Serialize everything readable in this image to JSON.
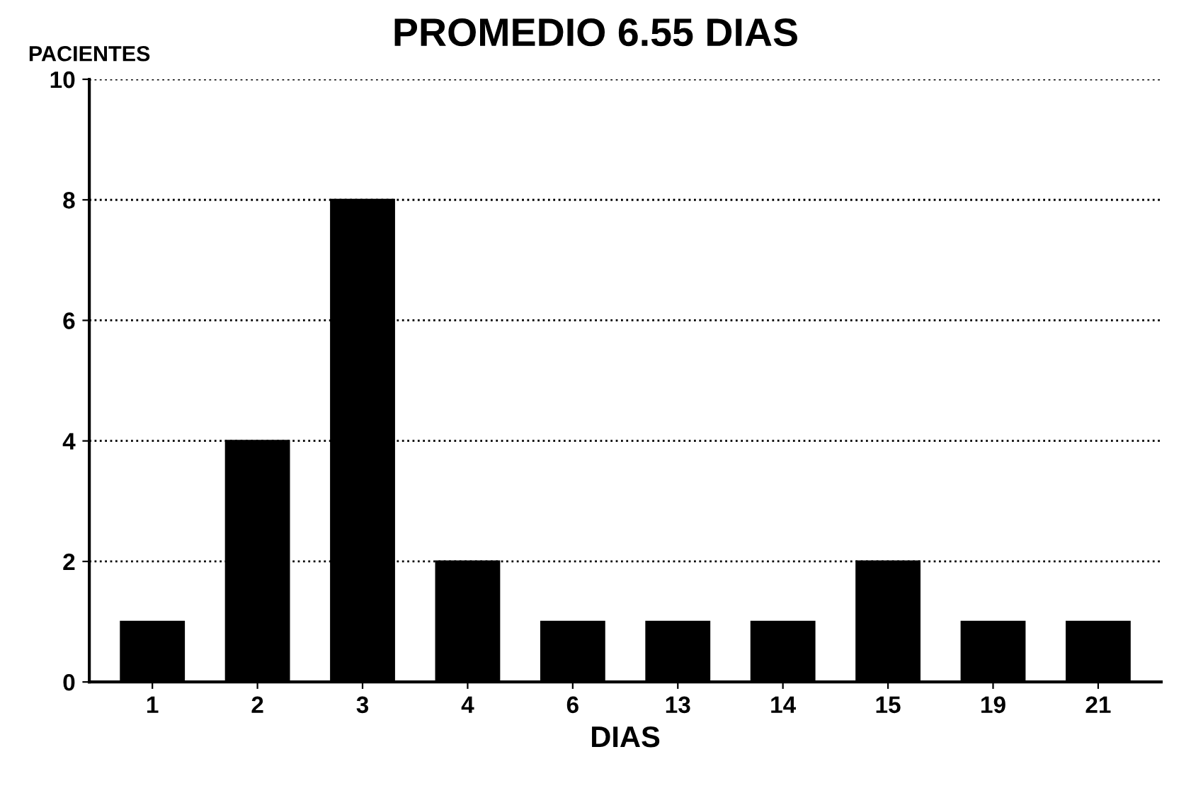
{
  "chart_data": {
    "type": "bar",
    "title": "PROMEDIO 6.55 DIAS",
    "ylabel": "PACIENTES",
    "xlabel": "DIAS",
    "categories": [
      "1",
      "2",
      "3",
      "4",
      "6",
      "13",
      "14",
      "15",
      "19",
      "21"
    ],
    "values": [
      1,
      4,
      8,
      2,
      1,
      1,
      1,
      2,
      1,
      1
    ],
    "color": "#000000",
    "ylim": [
      0,
      10
    ],
    "yticks": [
      0,
      2,
      4,
      6,
      8,
      10
    ],
    "grid": "y"
  }
}
